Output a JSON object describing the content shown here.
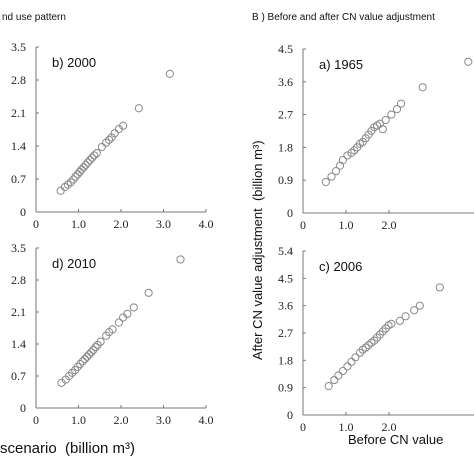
{
  "headers": {
    "left": "nd use pattern",
    "right": "B ) Before and after CN value adjustment"
  },
  "axis_labels": {
    "left_x": "scenario  (billion m³)",
    "right_x": "Before CN value",
    "right_y": "After CN value adjustment  (billion m³)"
  },
  "colors": {
    "marker": "#8a8a8a",
    "axis": "#777777",
    "text": "#222222"
  },
  "chart_data": [
    {
      "type": "scatter",
      "label": "b) 2000",
      "xlim": [
        0,
        4.0
      ],
      "ylim": [
        0,
        3.5
      ],
      "xticks": [
        "0",
        "1.0",
        "2.0",
        "3.0",
        "4.0"
      ],
      "yticks": [
        "0",
        "0.7",
        "1.4",
        "2.1",
        "2.8",
        "3.5"
      ],
      "points": [
        [
          0.58,
          0.45
        ],
        [
          0.68,
          0.53
        ],
        [
          0.75,
          0.58
        ],
        [
          0.82,
          0.63
        ],
        [
          0.88,
          0.69
        ],
        [
          0.93,
          0.75
        ],
        [
          0.98,
          0.8
        ],
        [
          1.03,
          0.85
        ],
        [
          1.07,
          0.9
        ],
        [
          1.12,
          0.95
        ],
        [
          1.17,
          1.0
        ],
        [
          1.22,
          1.05
        ],
        [
          1.27,
          1.1
        ],
        [
          1.32,
          1.15
        ],
        [
          1.37,
          1.2
        ],
        [
          1.43,
          1.25
        ],
        [
          1.55,
          1.38
        ],
        [
          1.65,
          1.47
        ],
        [
          1.72,
          1.53
        ],
        [
          1.78,
          1.58
        ],
        [
          1.85,
          1.67
        ],
        [
          1.95,
          1.76
        ],
        [
          2.05,
          1.83
        ],
        [
          2.42,
          2.2
        ],
        [
          3.15,
          2.93
        ]
      ]
    },
    {
      "type": "scatter",
      "label": "d) 2010",
      "xlim": [
        0,
        4.0
      ],
      "ylim": [
        0,
        3.5
      ],
      "xticks": [
        "0",
        "1.0",
        "2.0",
        "3.0",
        "4.0"
      ],
      "yticks": [
        "0",
        "0.7",
        "1.4",
        "2.1",
        "2.8",
        "3.5"
      ],
      "points": [
        [
          0.6,
          0.55
        ],
        [
          0.7,
          0.62
        ],
        [
          0.78,
          0.7
        ],
        [
          0.85,
          0.77
        ],
        [
          0.92,
          0.83
        ],
        [
          0.98,
          0.9
        ],
        [
          1.04,
          0.96
        ],
        [
          1.1,
          1.02
        ],
        [
          1.15,
          1.07
        ],
        [
          1.2,
          1.12
        ],
        [
          1.25,
          1.17
        ],
        [
          1.3,
          1.22
        ],
        [
          1.35,
          1.27
        ],
        [
          1.4,
          1.33
        ],
        [
          1.45,
          1.38
        ],
        [
          1.52,
          1.45
        ],
        [
          1.65,
          1.58
        ],
        [
          1.72,
          1.66
        ],
        [
          1.8,
          1.72
        ],
        [
          1.95,
          1.87
        ],
        [
          2.05,
          1.98
        ],
        [
          2.15,
          2.06
        ],
        [
          2.3,
          2.2
        ],
        [
          2.65,
          2.52
        ],
        [
          3.4,
          3.25
        ]
      ]
    },
    {
      "type": "scatter",
      "label": "a) 1965",
      "xlim": [
        0,
        3.0
      ],
      "ylim": [
        0,
        4.5
      ],
      "xticks": [
        "0",
        "1.0",
        "2.0"
      ],
      "yticks": [
        "0",
        "0.9",
        "1.8",
        "2.7",
        "3.6",
        "4.5"
      ],
      "points": [
        [
          0.4,
          0.85
        ],
        [
          0.5,
          1.0
        ],
        [
          0.58,
          1.15
        ],
        [
          0.65,
          1.3
        ],
        [
          0.7,
          1.45
        ],
        [
          0.78,
          1.58
        ],
        [
          0.85,
          1.65
        ],
        [
          0.9,
          1.72
        ],
        [
          0.95,
          1.8
        ],
        [
          1.0,
          1.9
        ],
        [
          1.05,
          1.95
        ],
        [
          1.1,
          2.05
        ],
        [
          1.15,
          2.15
        ],
        [
          1.2,
          2.25
        ],
        [
          1.25,
          2.35
        ],
        [
          1.3,
          2.4
        ],
        [
          1.35,
          2.45
        ],
        [
          1.4,
          2.3
        ],
        [
          1.45,
          2.55
        ],
        [
          1.55,
          2.7
        ],
        [
          1.65,
          2.85
        ],
        [
          1.72,
          3.0
        ],
        [
          2.1,
          3.45
        ],
        [
          2.9,
          4.15
        ]
      ]
    },
    {
      "type": "scatter",
      "label": "c) 2006",
      "xlim": [
        0,
        3.0
      ],
      "ylim": [
        0,
        5.4
      ],
      "xticks": [
        "0",
        "1.0",
        "2.0"
      ],
      "yticks": [
        "0",
        "0.9",
        "1.8",
        "2.7",
        "3.6",
        "4.5",
        "5.4"
      ],
      "points": [
        [
          0.45,
          0.95
        ],
        [
          0.55,
          1.15
        ],
        [
          0.62,
          1.3
        ],
        [
          0.7,
          1.45
        ],
        [
          0.78,
          1.6
        ],
        [
          0.85,
          1.75
        ],
        [
          0.92,
          1.9
        ],
        [
          1.0,
          2.05
        ],
        [
          1.05,
          2.15
        ],
        [
          1.1,
          2.22
        ],
        [
          1.15,
          2.3
        ],
        [
          1.2,
          2.38
        ],
        [
          1.25,
          2.45
        ],
        [
          1.3,
          2.55
        ],
        [
          1.35,
          2.65
        ],
        [
          1.4,
          2.75
        ],
        [
          1.45,
          2.85
        ],
        [
          1.5,
          2.95
        ],
        [
          1.55,
          3.0
        ],
        [
          1.7,
          3.1
        ],
        [
          1.8,
          3.25
        ],
        [
          1.95,
          3.45
        ],
        [
          2.05,
          3.6
        ],
        [
          2.4,
          4.2
        ],
        [
          3.1,
          5.0
        ]
      ]
    }
  ]
}
